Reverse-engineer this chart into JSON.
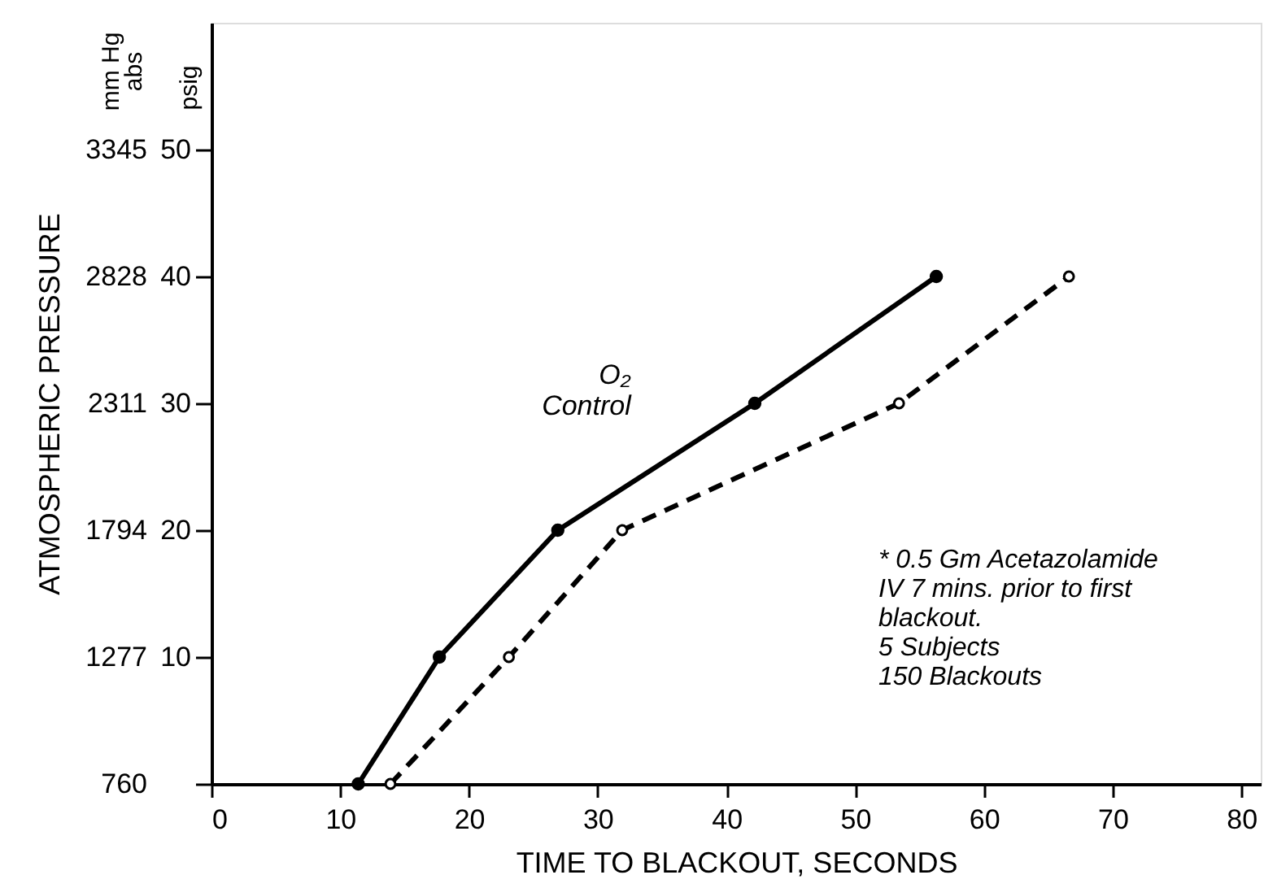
{
  "chart_data": {
    "type": "line",
    "xlabel": "TIME TO BLACKOUT, SECONDS",
    "y2label": "ATMOSPHERIC PRESSURE",
    "xlim": [
      0,
      81.5
    ],
    "xticks": [
      0,
      10,
      20,
      30,
      40,
      50,
      60,
      70,
      80
    ],
    "ylim": [
      0,
      60
    ],
    "yticks": [
      {
        "value": 0,
        "label": null
      },
      10,
      20,
      30,
      40,
      50
    ],
    "y2lim": [
      760,
      3862
    ],
    "y2ticks": [
      760,
      1277,
      1794,
      2311,
      2828,
      3345
    ],
    "grid": false,
    "marker": "circle",
    "series": [
      {
        "name": "O₂ Control",
        "color": "#000000",
        "line_style": "solid",
        "x": [
          11.4,
          17.7,
          26.9,
          42.2,
          56.3
        ],
        "values": [
          0,
          10,
          20,
          30,
          40
        ]
      },
      {
        "color": "#000000",
        "line_style": "dashed",
        "x": [
          13.9,
          23.1,
          31.9,
          53.4,
          66.6
        ],
        "values": [
          0,
          10,
          20,
          30,
          40
        ]
      }
    ],
    "annotations": [
      "mm Hg\nabs",
      "psig",
      "* 0.5 Gm Acetazolamide\nIV 7 mins. prior to first\n      blackout.\n5 Subjects\n150 Blackouts"
    ]
  }
}
